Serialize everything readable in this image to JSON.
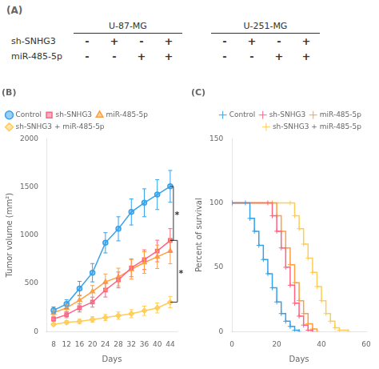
{
  "chart_data": [
    {
      "type": "table",
      "title": "(A)",
      "categories": [
        "sh-SNHG3",
        "miR-485-5p"
      ],
      "series": [
        {
          "name": "U-87-MG",
          "values": [
            [
              "-",
              "+",
              "-",
              "+"
            ],
            [
              "-",
              "-",
              "+",
              "+"
            ]
          ]
        },
        {
          "name": "U-251-MG",
          "values": [
            [
              "-",
              "+",
              "-",
              "+"
            ],
            [
              "-",
              "-",
              "+",
              "+"
            ]
          ]
        }
      ]
    },
    {
      "type": "line",
      "title": "(B)",
      "x_label": "Days",
      "y_label": "Tumor volume (mm²)",
      "x": [
        8,
        12,
        16,
        20,
        24,
        28,
        32,
        36,
        40,
        44
      ],
      "series": [
        {
          "name": "Control",
          "marker": "circle",
          "values": [
            220,
            285,
            445,
            610,
            920,
            1065,
            1240,
            1335,
            1420,
            1505
          ],
          "errors": [
            35,
            45,
            75,
            95,
            105,
            125,
            135,
            145,
            155,
            165
          ]
        },
        {
          "name": "sh-SNHG3",
          "marker": "square",
          "values": [
            130,
            175,
            245,
            305,
            430,
            535,
            660,
            745,
            835,
            945
          ],
          "errors": [
            22,
            32,
            42,
            52,
            72,
            82,
            92,
            102,
            112,
            122
          ]
        },
        {
          "name": "miR-485-5p",
          "marker": "triangle",
          "values": [
            195,
            245,
            325,
            415,
            515,
            565,
            645,
            715,
            775,
            835
          ],
          "errors": [
            28,
            38,
            52,
            62,
            82,
            92,
            102,
            112,
            122,
            132
          ]
        },
        {
          "name": "sh-SNHG3 + miR-485-5p",
          "marker": "diamond",
          "values": [
            75,
            95,
            105,
            125,
            145,
            165,
            185,
            215,
            245,
            305
          ],
          "errors": [
            14,
            18,
            22,
            28,
            32,
            38,
            42,
            48,
            52,
            58
          ]
        }
      ],
      "xlim": [
        6,
        46
      ],
      "xticks": [
        8,
        12,
        16,
        20,
        24,
        28,
        32,
        36,
        40,
        44
      ],
      "ylim": [
        0,
        2000
      ],
      "yticks": [
        0,
        500,
        1000,
        1500,
        2000
      ],
      "grid": false,
      "legend": "upper left",
      "annotations": [
        {
          "text": "*",
          "series": [
            "Control",
            "sh-SNHG3"
          ]
        },
        {
          "text": "*",
          "series": [
            "sh-SNHG3",
            "sh-SNHG3 + miR-485-5p"
          ]
        }
      ]
    },
    {
      "type": "line",
      "title": "(C)",
      "x_label": "Days",
      "y_label": "Percent of survival",
      "line_style": "step",
      "marker": "plus",
      "series": [
        {
          "name": "Control",
          "x": [
            0,
            6,
            8,
            10,
            12,
            14,
            16,
            18,
            20,
            22,
            24,
            26,
            28,
            30
          ],
          "values": [
            100,
            100,
            88,
            78,
            67,
            56,
            45,
            34,
            23,
            14,
            8,
            4,
            1,
            0
          ]
        },
        {
          "name": "sh-SNHG3",
          "x": [
            0,
            16,
            18,
            20,
            22,
            24,
            26,
            28,
            30,
            32,
            34,
            36
          ],
          "values": [
            100,
            100,
            90,
            78,
            65,
            50,
            36,
            22,
            12,
            5,
            1,
            0
          ]
        },
        {
          "name": "miR-485-5p",
          "x": [
            0,
            18,
            20,
            22,
            24,
            26,
            28,
            30,
            32,
            34,
            36,
            38
          ],
          "values": [
            100,
            100,
            90,
            78,
            65,
            52,
            38,
            24,
            14,
            6,
            2,
            0
          ]
        },
        {
          "name": "sh-SNHG3 + miR-485-5p",
          "x": [
            0,
            26,
            28,
            30,
            32,
            34,
            36,
            38,
            40,
            42,
            44,
            46,
            48,
            52
          ],
          "values": [
            100,
            100,
            90,
            80,
            68,
            57,
            46,
            35,
            24,
            14,
            8,
            3,
            1,
            0
          ]
        }
      ],
      "xlim": [
        0,
        60
      ],
      "xticks": [
        0,
        20,
        40,
        60
      ],
      "ylim": [
        0,
        150
      ],
      "yticks": [
        0,
        50,
        100,
        150
      ],
      "grid": false,
      "legend": "upper right"
    }
  ]
}
